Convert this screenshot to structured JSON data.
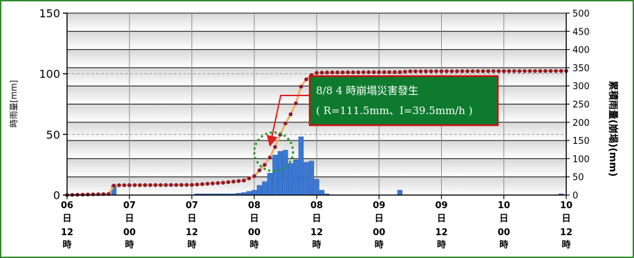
{
  "chart_data": {
    "type": "bar+line",
    "ylabel_left": "時雨量[mm]",
    "ylabel_right": "累積雨量(崩塌)(mm)",
    "ylim_left": [
      0,
      150
    ],
    "ylim_right": [
      0,
      500
    ],
    "yticks_left": [
      "0",
      "50",
      "100",
      "150"
    ],
    "yticks_right": [
      "0",
      "50",
      "100",
      "150",
      "200",
      "250",
      "300",
      "350",
      "400",
      "450",
      "500"
    ],
    "x_ticks": [
      {
        "day": "06",
        "d": "日",
        "hour": "12",
        "h": "時"
      },
      {
        "day": "07",
        "d": "日",
        "hour": "00",
        "h": "時"
      },
      {
        "day": "07",
        "d": "日",
        "hour": "12",
        "h": "時"
      },
      {
        "day": "08",
        "d": "日",
        "hour": "00",
        "h": "時"
      },
      {
        "day": "08",
        "d": "日",
        "hour": "12",
        "h": "時"
      },
      {
        "day": "09",
        "d": "日",
        "hour": "00",
        "h": "時"
      },
      {
        "day": "09",
        "d": "日",
        "hour": "12",
        "h": "時"
      },
      {
        "day": "10",
        "d": "日",
        "hour": "00",
        "h": "時"
      },
      {
        "day": "10",
        "d": "日",
        "hour": "12",
        "h": "時"
      }
    ],
    "x_range_hours": [
      0,
      96
    ],
    "hourly_bars": [
      {
        "x": 9,
        "y": 8
      },
      {
        "x": 25,
        "y": 1
      },
      {
        "x": 26,
        "y": 1
      },
      {
        "x": 27,
        "y": 1
      },
      {
        "x": 28,
        "y": 1
      },
      {
        "x": 29,
        "y": 1
      },
      {
        "x": 30,
        "y": 1
      },
      {
        "x": 31,
        "y": 1
      },
      {
        "x": 32,
        "y": 1
      },
      {
        "x": 33,
        "y": 1.5
      },
      {
        "x": 34,
        "y": 2
      },
      {
        "x": 35,
        "y": 3
      },
      {
        "x": 36,
        "y": 4
      },
      {
        "x": 37,
        "y": 8
      },
      {
        "x": 38,
        "y": 11
      },
      {
        "x": 39,
        "y": 18
      },
      {
        "x": 40,
        "y": 33
      },
      {
        "x": 41,
        "y": 36
      },
      {
        "x": 42,
        "y": 37
      },
      {
        "x": 43,
        "y": 26
      },
      {
        "x": 44,
        "y": 29
      },
      {
        "x": 45,
        "y": 48
      },
      {
        "x": 46,
        "y": 27
      },
      {
        "x": 47,
        "y": 28
      },
      {
        "x": 48,
        "y": 13
      },
      {
        "x": 49,
        "y": 4
      },
      {
        "x": 50,
        "y": 1
      },
      {
        "x": 64,
        "y": 4
      },
      {
        "x": 95,
        "y": 1
      }
    ],
    "cumulative_points": [
      {
        "x": 0,
        "y": 0
      },
      {
        "x": 8,
        "y": 3
      },
      {
        "x": 9,
        "y": 26
      },
      {
        "x": 10,
        "y": 27
      },
      {
        "x": 24,
        "y": 28
      },
      {
        "x": 30,
        "y": 34
      },
      {
        "x": 34,
        "y": 40
      },
      {
        "x": 36,
        "y": 52
      },
      {
        "x": 37,
        "y": 68
      },
      {
        "x": 38,
        "y": 83
      },
      {
        "x": 39,
        "y": 103
      },
      {
        "x": 40,
        "y": 132
      },
      {
        "x": 41,
        "y": 166
      },
      {
        "x": 42,
        "y": 197
      },
      {
        "x": 43,
        "y": 222
      },
      {
        "x": 44,
        "y": 252
      },
      {
        "x": 45,
        "y": 298
      },
      {
        "x": 46,
        "y": 318
      },
      {
        "x": 47,
        "y": 330
      },
      {
        "x": 48,
        "y": 336
      },
      {
        "x": 50,
        "y": 337
      },
      {
        "x": 64,
        "y": 338
      },
      {
        "x": 66,
        "y": 340
      },
      {
        "x": 96,
        "y": 341
      }
    ],
    "annotation": {
      "line1": "8/8 4 時崩塌災害發生",
      "line2": "( R=111.5mm、I=39.5mm/h )",
      "at_x": 40,
      "at_y": 34
    },
    "colors": {
      "bars": "#3a78d6",
      "line": "#f0b060",
      "points": "#8b1a3a",
      "annotation_fill": "#0e7a2e",
      "annotation_border": "#cc1111",
      "arrow": "#e02020",
      "circle": "#1e9a1e",
      "frame": "#2e8b2e"
    }
  }
}
